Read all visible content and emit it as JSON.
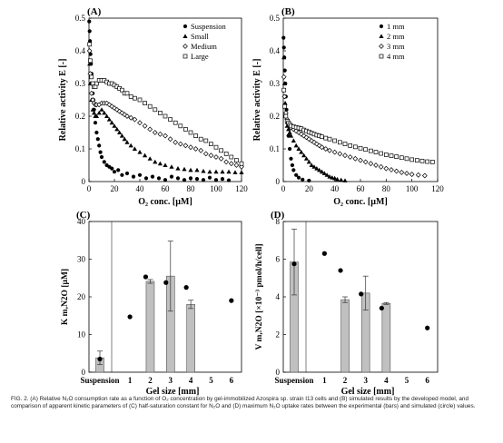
{
  "chart_data": [
    {
      "panel": "(A)",
      "type": "scatter",
      "xlabel": "O₂ conc. [µM]",
      "ylabel": "Relative activity  E [-]",
      "xlim": [
        0,
        120
      ],
      "ylim": [
        0,
        0.5
      ],
      "xticks": [
        "0",
        "20",
        "40",
        "60",
        "80",
        "100",
        "120"
      ],
      "yticks": [
        "0",
        "0.1",
        "0.2",
        "0.3",
        "0.4",
        "0.5"
      ],
      "legend_position": "top-right",
      "series": [
        {
          "name": "Suspension",
          "marker": "circle",
          "x": [
            0.2,
            0.5,
            0.8,
            1.2,
            1.6,
            2,
            2.5,
            3,
            3.5,
            4,
            5,
            6,
            7,
            8,
            9,
            10,
            12,
            14,
            16,
            18,
            20,
            23,
            26,
            30,
            35,
            40,
            45,
            50,
            55,
            60,
            65,
            70,
            75,
            80,
            85,
            90,
            95,
            100,
            105,
            110
          ],
          "y": [
            0.49,
            0.46,
            0.43,
            0.39,
            0.36,
            0.33,
            0.3,
            0.27,
            0.25,
            0.22,
            0.18,
            0.15,
            0.13,
            0.11,
            0.09,
            0.075,
            0.06,
            0.05,
            0.045,
            0.04,
            0.03,
            0.035,
            0.02,
            0.025,
            0.015,
            0.02,
            0.01,
            0.015,
            0.01,
            0.005,
            0.015,
            0.01,
            0.005,
            0.01,
            0.008,
            0.005,
            0.012,
            0.005,
            0.008,
            0.004
          ]
        },
        {
          "name": "Small",
          "marker": "triangle",
          "x": [
            0.5,
            1,
            2,
            3,
            4,
            5,
            6,
            8,
            10,
            12,
            14,
            16,
            18,
            20,
            22,
            24,
            26,
            28,
            30,
            33,
            36,
            40,
            44,
            48,
            52,
            56,
            60,
            65,
            70,
            75,
            80,
            85,
            90,
            95,
            100,
            105,
            110,
            115,
            120
          ],
          "y": [
            0.36,
            0.3,
            0.25,
            0.22,
            0.21,
            0.2,
            0.2,
            0.21,
            0.22,
            0.21,
            0.2,
            0.19,
            0.18,
            0.17,
            0.16,
            0.15,
            0.14,
            0.13,
            0.12,
            0.11,
            0.1,
            0.09,
            0.08,
            0.07,
            0.06,
            0.055,
            0.05,
            0.045,
            0.04,
            0.038,
            0.035,
            0.035,
            0.032,
            0.03,
            0.03,
            0.03,
            0.03,
            0.028,
            0.028
          ]
        },
        {
          "name": "Medium",
          "marker": "diamond",
          "x": [
            0.5,
            1,
            2,
            3,
            4,
            5,
            6,
            8,
            10,
            12,
            14,
            16,
            18,
            20,
            22,
            24,
            26,
            28,
            30,
            33,
            36,
            40,
            44,
            48,
            52,
            56,
            60,
            64,
            68,
            72,
            76,
            80,
            84,
            88,
            92,
            96,
            100,
            104,
            108,
            112,
            116,
            120
          ],
          "y": [
            0.4,
            0.33,
            0.27,
            0.25,
            0.24,
            0.235,
            0.235,
            0.235,
            0.24,
            0.24,
            0.24,
            0.235,
            0.23,
            0.225,
            0.22,
            0.215,
            0.21,
            0.205,
            0.2,
            0.195,
            0.19,
            0.18,
            0.17,
            0.16,
            0.15,
            0.145,
            0.14,
            0.13,
            0.12,
            0.115,
            0.11,
            0.105,
            0.1,
            0.095,
            0.085,
            0.08,
            0.075,
            0.07,
            0.06,
            0.055,
            0.05,
            0.045
          ]
        },
        {
          "name": "Large",
          "marker": "square",
          "x": [
            0.5,
            1,
            2,
            3,
            4,
            5,
            6,
            8,
            10,
            12,
            14,
            16,
            18,
            20,
            22,
            24,
            26,
            28,
            30,
            33,
            36,
            40,
            44,
            48,
            52,
            56,
            60,
            64,
            68,
            72,
            76,
            80,
            84,
            88,
            92,
            96,
            100,
            104,
            108,
            112,
            116,
            120
          ],
          "y": [
            0.42,
            0.37,
            0.32,
            0.3,
            0.29,
            0.29,
            0.3,
            0.31,
            0.31,
            0.31,
            0.305,
            0.3,
            0.3,
            0.295,
            0.29,
            0.285,
            0.28,
            0.27,
            0.27,
            0.26,
            0.255,
            0.25,
            0.24,
            0.23,
            0.22,
            0.21,
            0.2,
            0.19,
            0.18,
            0.17,
            0.16,
            0.15,
            0.14,
            0.13,
            0.125,
            0.115,
            0.105,
            0.095,
            0.085,
            0.075,
            0.065,
            0.055
          ]
        }
      ]
    },
    {
      "panel": "(B)",
      "type": "scatter",
      "xlabel": "O₂ conc. [µM]",
      "ylabel": "Relative activity  E [-]",
      "xlim": [
        0,
        120
      ],
      "ylim": [
        0,
        0.5
      ],
      "xticks": [
        "0",
        "20",
        "40",
        "60",
        "80",
        "100",
        "120"
      ],
      "yticks": [
        "0",
        "0.1",
        "0.2",
        "0.3",
        "0.4",
        "0.5"
      ],
      "legend_position": "top-right",
      "series": [
        {
          "name": "1 mm",
          "marker": "circle",
          "x": [
            0.2,
            0.5,
            0.8,
            1.2,
            1.6,
            2,
            2.5,
            3,
            4,
            5,
            6,
            7,
            8,
            10,
            12,
            15,
            20
          ],
          "y": [
            0.44,
            0.41,
            0.38,
            0.34,
            0.3,
            0.26,
            0.22,
            0.18,
            0.14,
            0.1,
            0.07,
            0.05,
            0.035,
            0.02,
            0.012,
            0.006,
            0.003
          ]
        },
        {
          "name": "2 mm",
          "marker": "triangle",
          "x": [
            0.5,
            1,
            1.5,
            2,
            3,
            4,
            5,
            6,
            8,
            10,
            12,
            14,
            16,
            18,
            20,
            22,
            24,
            26,
            28,
            30,
            32,
            34,
            36,
            38,
            40,
            42,
            45,
            48
          ],
          "y": [
            0.38,
            0.3,
            0.24,
            0.2,
            0.17,
            0.16,
            0.15,
            0.14,
            0.125,
            0.11,
            0.1,
            0.09,
            0.08,
            0.07,
            0.06,
            0.05,
            0.045,
            0.04,
            0.035,
            0.03,
            0.025,
            0.02,
            0.015,
            0.012,
            0.01,
            0.007,
            0.005,
            0.003
          ]
        },
        {
          "name": "3 mm",
          "marker": "diamond",
          "x": [
            0.5,
            1,
            2,
            3,
            4,
            5,
            6,
            8,
            10,
            12,
            14,
            16,
            18,
            20,
            22,
            24,
            26,
            28,
            30,
            33,
            36,
            40,
            44,
            48,
            52,
            56,
            60,
            64,
            68,
            72,
            76,
            80,
            84,
            88,
            92,
            96,
            100,
            105,
            110
          ],
          "y": [
            0.32,
            0.26,
            0.21,
            0.19,
            0.18,
            0.17,
            0.165,
            0.16,
            0.155,
            0.15,
            0.145,
            0.14,
            0.135,
            0.13,
            0.125,
            0.12,
            0.115,
            0.11,
            0.105,
            0.1,
            0.095,
            0.09,
            0.085,
            0.08,
            0.075,
            0.07,
            0.065,
            0.06,
            0.055,
            0.05,
            0.045,
            0.04,
            0.036,
            0.032,
            0.028,
            0.025,
            0.022,
            0.02,
            0.018
          ]
        },
        {
          "name": "4 mm",
          "marker": "square",
          "x": [
            0.5,
            1,
            2,
            3,
            4,
            5,
            6,
            8,
            10,
            12,
            14,
            16,
            18,
            20,
            22,
            24,
            26,
            28,
            30,
            33,
            36,
            40,
            44,
            48,
            52,
            56,
            60,
            64,
            68,
            72,
            76,
            80,
            84,
            88,
            92,
            96,
            100,
            104,
            108,
            112,
            116
          ],
          "y": [
            0.28,
            0.23,
            0.2,
            0.185,
            0.18,
            0.175,
            0.17,
            0.168,
            0.166,
            0.164,
            0.162,
            0.158,
            0.155,
            0.152,
            0.148,
            0.145,
            0.142,
            0.14,
            0.137,
            0.133,
            0.13,
            0.125,
            0.12,
            0.115,
            0.11,
            0.106,
            0.102,
            0.098,
            0.094,
            0.09,
            0.086,
            0.082,
            0.079,
            0.076,
            0.073,
            0.07,
            0.067,
            0.065,
            0.063,
            0.061,
            0.06
          ]
        }
      ]
    },
    {
      "panel": "(C)",
      "type": "bar",
      "xlabel": "Gel size [mm]",
      "ylabel": "K m,N2O [µM]",
      "ylim": [
        0,
        40
      ],
      "yticks": [
        "0",
        "10",
        "20",
        "30",
        "40"
      ],
      "xticks": [
        "Suspension",
        "1",
        "2",
        "3",
        "4",
        "5",
        "6"
      ],
      "bars": [
        {
          "category": "Suspension",
          "value": 3.8,
          "error": 1.8
        },
        {
          "category": "2",
          "value": 24.1,
          "error": 0.5
        },
        {
          "category": "3",
          "value": 25.5,
          "error": 9.3
        },
        {
          "category": "4",
          "value": 18.0,
          "error": 1.1
        }
      ],
      "simulated": [
        {
          "category": "Suspension",
          "value": 3.5
        },
        {
          "category": "1",
          "value": 14.7
        },
        {
          "category": "2",
          "value": 25.3
        },
        {
          "category": "3",
          "value": 23.8
        },
        {
          "category": "4",
          "value": 22.5
        },
        {
          "category": "6",
          "value": 19.0
        }
      ]
    },
    {
      "panel": "(D)",
      "type": "bar",
      "xlabel": "Gel size [mm]",
      "ylabel": "V m,N2O [×10⁻³ pmol/h/cell]",
      "ylim": [
        0,
        8
      ],
      "yticks": [
        "0",
        "2",
        "4",
        "6",
        "8"
      ],
      "xticks": [
        "Suspension",
        "1",
        "2",
        "3",
        "4",
        "5",
        "6"
      ],
      "bars": [
        {
          "category": "Suspension",
          "value": 5.85,
          "error": 1.75
        },
        {
          "category": "2",
          "value": 3.85,
          "error": 0.15
        },
        {
          "category": "3",
          "value": 4.2,
          "error": 0.9
        },
        {
          "category": "4",
          "value": 3.65,
          "error": 0.05
        }
      ],
      "simulated": [
        {
          "category": "Suspension",
          "value": 5.75
        },
        {
          "category": "1",
          "value": 6.3
        },
        {
          "category": "2",
          "value": 5.4
        },
        {
          "category": "3",
          "value": 4.15
        },
        {
          "category": "4",
          "value": 3.4
        },
        {
          "category": "6",
          "value": 2.35
        }
      ]
    }
  ],
  "caption": "FIG. 2. (A) Relative N₂O consumption rate as a function of O₂ concentration by gel-immobilized Azospira sp. strain I13 cells and (B) simulated results by the developed model, and comparison of apparent kinetic parameters of (C) half-saturation constant for N₂O and (D) maximum N₂O uptake rates between the experimental (bars) and simulated (circle) values."
}
